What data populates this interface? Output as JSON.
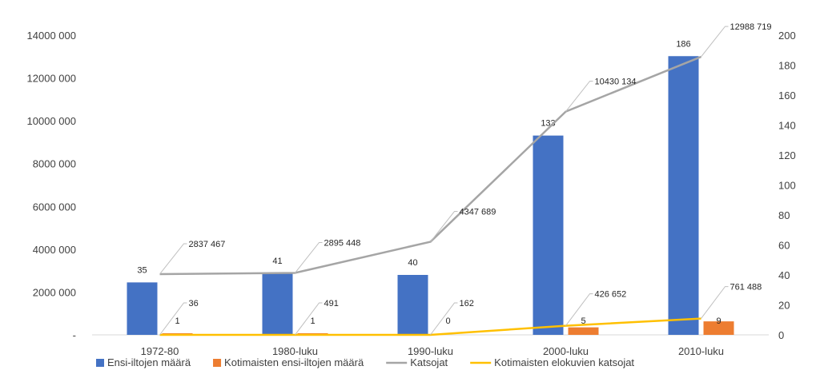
{
  "chart_data": {
    "type": "bar",
    "categories": [
      "1972-80",
      "1980-luku",
      "1990-luku",
      "2000-luku",
      "2010-luku"
    ],
    "series": [
      {
        "name": "Ensi-iltojen määrä",
        "kind": "bar",
        "axis": "right",
        "color": "#4472C4",
        "values": [
          35,
          41,
          40,
          133,
          186
        ]
      },
      {
        "name": "Kotimaisten ensi-iltojen määrä",
        "kind": "bar",
        "axis": "right",
        "color": "#ED7D31",
        "values": [
          1,
          1,
          0,
          5,
          9
        ]
      },
      {
        "name": "Katsojat",
        "kind": "line",
        "axis": "left",
        "color": "#A5A5A5",
        "values": [
          2837467,
          2895448,
          4347689,
          10430134,
          12988719
        ],
        "labels": [
          "2837 467",
          "2895 448",
          "4347 689",
          "10430 134",
          "12988 719"
        ]
      },
      {
        "name": "Kotimaisten elokuvien katsojat",
        "kind": "line",
        "axis": "left",
        "color": "#FFC000",
        "values": [
          36,
          491,
          162,
          426652,
          761488
        ],
        "labels": [
          "36",
          "491",
          "162",
          "426 652",
          "761 488"
        ]
      }
    ],
    "y_left": {
      "ylim": [
        0,
        14000000
      ],
      "ticks": [
        0,
        2000000,
        4000000,
        6000000,
        8000000,
        10000000,
        12000000,
        14000000
      ],
      "tick_labels": [
        "-",
        "2000 000",
        "4000 000",
        "6000 000",
        "8000 000",
        "10000 000",
        "12000 000",
        "14000 000"
      ]
    },
    "y_right": {
      "ylim": [
        0,
        200
      ],
      "ticks": [
        0,
        20,
        40,
        60,
        80,
        100,
        120,
        140,
        160,
        180,
        200
      ],
      "tick_labels": [
        "0",
        "20",
        "40",
        "60",
        "80",
        "100",
        "120",
        "140",
        "160",
        "180",
        "200"
      ]
    },
    "legend": {
      "position": "bottom"
    },
    "grid": false
  }
}
